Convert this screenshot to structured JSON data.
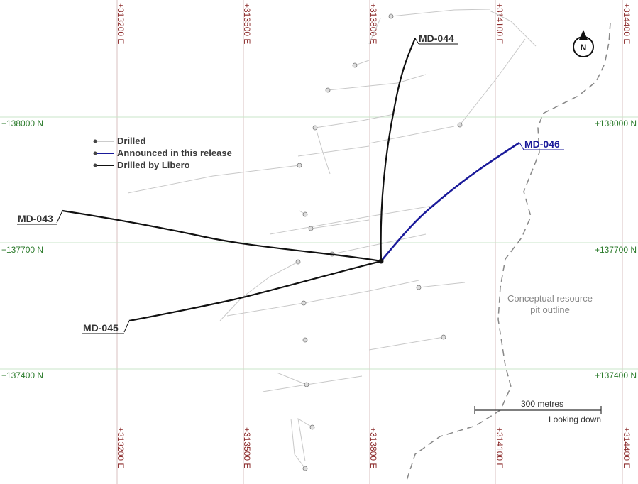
{
  "grid": {
    "easting_labels": [
      "+313200 E",
      "+313500 E",
      "+313800 E",
      "+314100 E",
      "+314400 E"
    ],
    "northing_labels": [
      "+138000 N",
      "+137700 N",
      "+137400 N"
    ],
    "colors": {
      "easting": "#8b2a2a",
      "northing": "#2a7a2a"
    }
  },
  "legend": {
    "items": [
      {
        "label": "Drilled",
        "color": "#bbbbbb"
      },
      {
        "label": "Announced in this release",
        "color": "#1a1a9a"
      },
      {
        "label": "Drilled by Libero",
        "color": "#111111"
      }
    ]
  },
  "holes": {
    "md043": "MD-043",
    "md044": "MD-044",
    "md045": "MD-045",
    "md046": "MD-046"
  },
  "pit": {
    "line1": "Conceptual resource",
    "line2": "pit outline"
  },
  "scale": {
    "label": "300 metres",
    "view": "Looking down"
  },
  "north_arrow": {
    "letter": "N",
    "icon": "north-arrow-icon"
  }
}
